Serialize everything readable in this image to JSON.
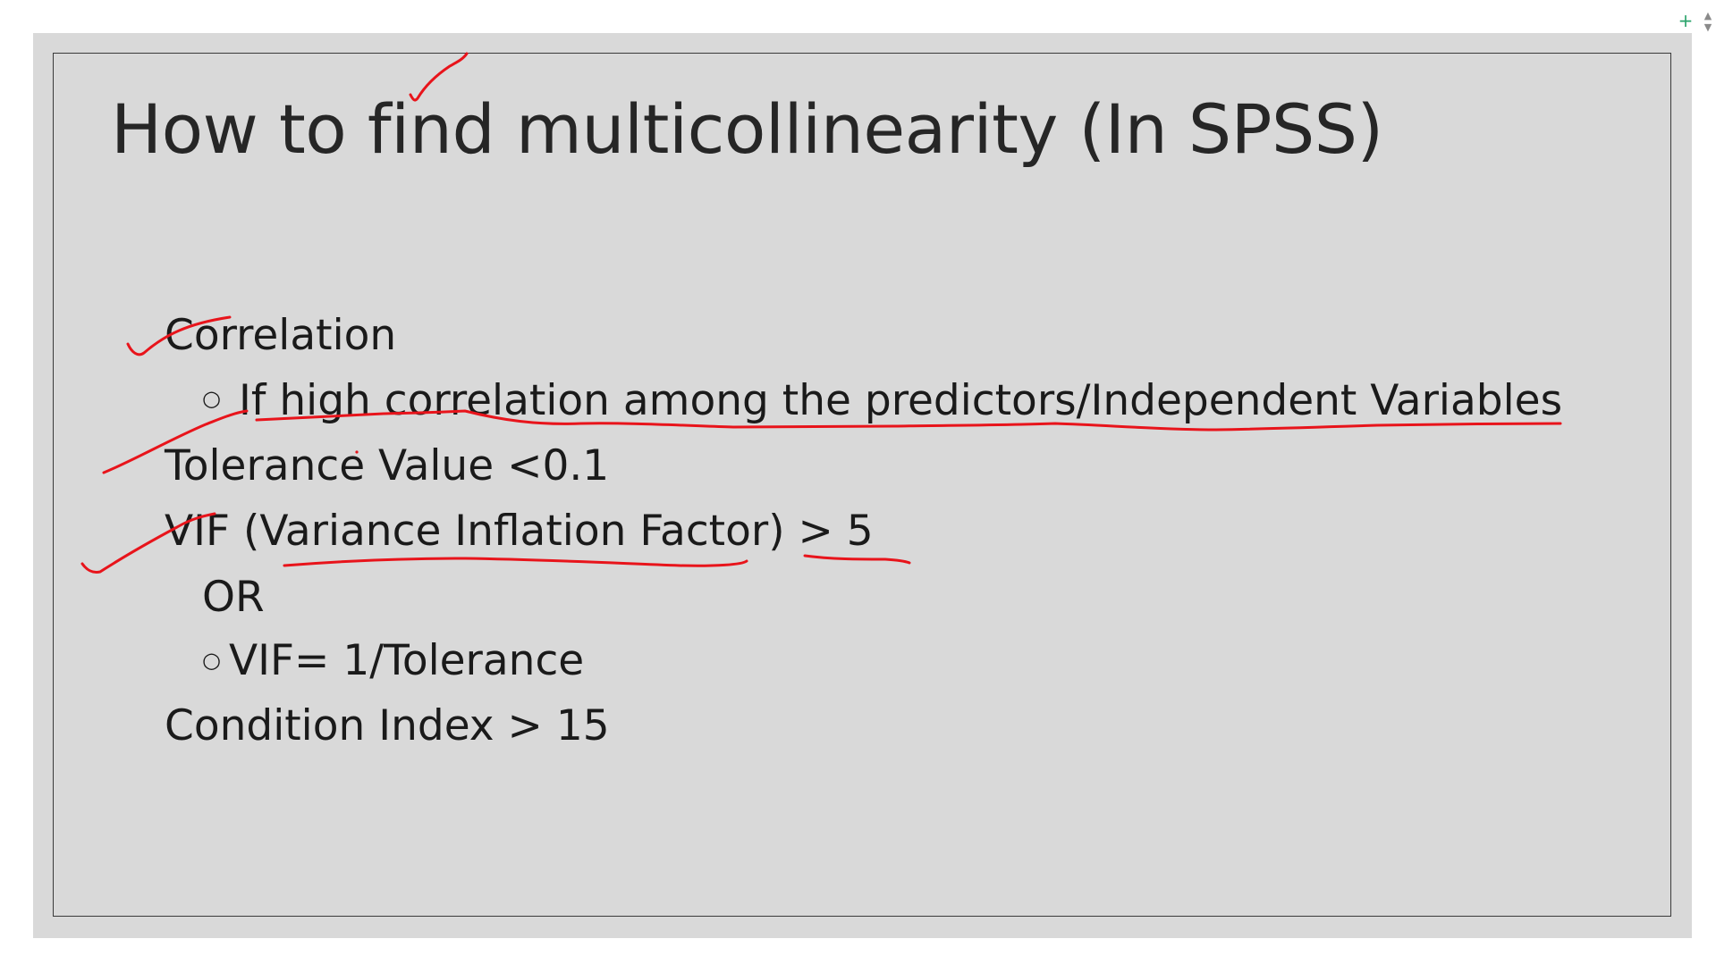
{
  "slide": {
    "title": "How to find multicollinearity (In SPSS)",
    "items": [
      {
        "text": "Correlation",
        "level": 0
      },
      {
        "text": "If high correlation among the predictors/Independent Variables",
        "level": 1,
        "bullet": "○"
      },
      {
        "text": "Tolerance Value <0.1",
        "level": 0
      },
      {
        "text": "VIF (Variance Inflation Factor)  > 5",
        "level": 0
      },
      {
        "text": "OR",
        "level": 0
      },
      {
        "text": "VIF= 1/Tolerance",
        "level": 1,
        "bullet": "○"
      },
      {
        "text": "Condition Index > 15",
        "level": 0
      }
    ]
  },
  "controls": {
    "add_icon": "plus-icon",
    "add_glyph": "+",
    "scroll_up_glyph": "▲",
    "scroll_down_glyph": "▼"
  },
  "colors": {
    "slide_background": "#d9d9d9",
    "slide_border": "#3a3a3a",
    "annotation_ink": "#e8141b",
    "text": "#1a1a1a"
  }
}
